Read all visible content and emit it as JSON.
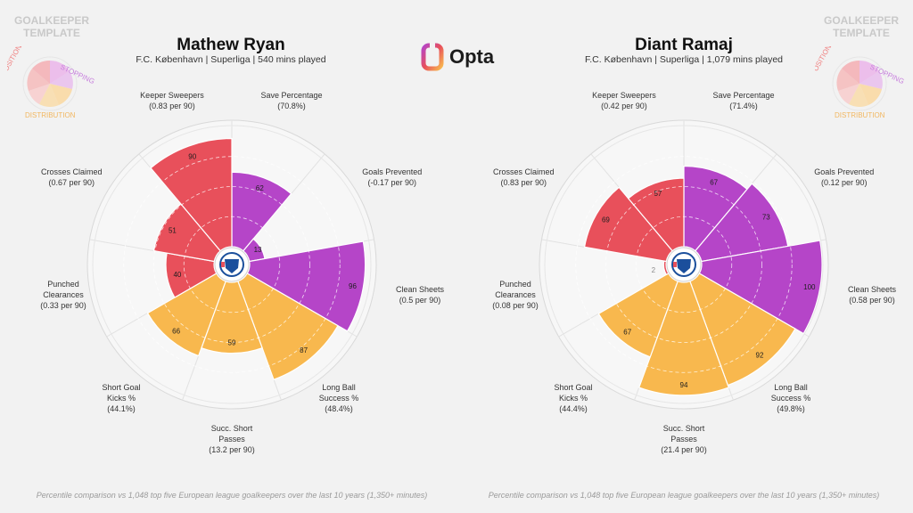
{
  "brand": {
    "name": "Opta"
  },
  "template_label": {
    "line1": "GOALKEEPER",
    "line2": "TEMPLATE"
  },
  "legend_mini": {
    "positioning": "POSITIONING",
    "stopping": "STOPPING",
    "distribution": "DISTRIBUTION"
  },
  "colors": {
    "positioning": "#e8505b",
    "stopping": "#b545c8",
    "distribution": "#f8b84e",
    "background": "#f2f2f2",
    "badge": "#1b4f9c"
  },
  "footnote": "Percentile comparison vs 1,048 top five European league goalkeepers over the last 10 years (1,350+ minutes)",
  "players": [
    {
      "name": "Mathew Ryan",
      "subtitle": "F.C. København | Superliga | 540 mins played",
      "labels": [
        {
          "lines": [
            "Save Percentage",
            "(70.8%)"
          ]
        },
        {
          "lines": [
            "Goals Prevented",
            "(-0.17 per 90)"
          ]
        },
        {
          "lines": [
            "Clean Sheets",
            "(0.5 per 90)"
          ]
        },
        {
          "lines": [
            "Long Ball",
            "Success %",
            "(48.4%)"
          ]
        },
        {
          "lines": [
            "Succ. Short",
            "Passes",
            "(13.2 per 90)"
          ]
        },
        {
          "lines": [
            "Short Goal",
            "Kicks %",
            "(44.1%)"
          ]
        },
        {
          "lines": [
            "Punched",
            "Clearances",
            "(0.33 per 90)"
          ]
        },
        {
          "lines": [
            "Crosses Claimed",
            "(0.67 per 90)"
          ]
        },
        {
          "lines": [
            "Keeper Sweepers",
            "(0.83 per 90)"
          ]
        }
      ]
    },
    {
      "name": "Diant Ramaj",
      "subtitle": "F.C. København | Superliga | 1,079 mins played",
      "labels": [
        {
          "lines": [
            "Save Percentage",
            "(71.4%)"
          ]
        },
        {
          "lines": [
            "Goals Prevented",
            "(0.12 per 90)"
          ]
        },
        {
          "lines": [
            "Clean Sheets",
            "(0.58 per 90)"
          ]
        },
        {
          "lines": [
            "Long Ball",
            "Success %",
            "(49.8%)"
          ]
        },
        {
          "lines": [
            "Succ. Short",
            "Passes",
            "(21.4 per 90)"
          ]
        },
        {
          "lines": [
            "Short Goal",
            "Kicks %",
            "(44.4%)"
          ]
        },
        {
          "lines": [
            "Punched",
            "Clearances",
            "(0.08 per 90)"
          ]
        },
        {
          "lines": [
            "Crosses Claimed",
            "(0.83 per 90)"
          ]
        },
        {
          "lines": [
            "Keeper Sweepers",
            "(0.42 per 90)"
          ]
        }
      ]
    }
  ],
  "chart_data": [
    {
      "type": "polar-bar",
      "title": "Mathew Ryan",
      "categories": [
        "Save Percentage",
        "Goals Prevented",
        "Clean Sheets",
        "Long Ball Success %",
        "Succ. Short Passes",
        "Short Goal Kicks %",
        "Punched Clearances",
        "Crosses Claimed",
        "Keeper Sweepers"
      ],
      "values": [
        62,
        13,
        96,
        87,
        59,
        66,
        40,
        51,
        90
      ],
      "groups": [
        "stopping",
        "stopping",
        "stopping",
        "distribution",
        "distribution",
        "distribution",
        "positioning",
        "positioning",
        "positioning"
      ],
      "rlim": [
        0,
        100
      ],
      "grid": true
    },
    {
      "type": "polar-bar",
      "title": "Diant Ramaj",
      "categories": [
        "Save Percentage",
        "Goals Prevented",
        "Clean Sheets",
        "Long Ball Success %",
        "Succ. Short Passes",
        "Short Goal Kicks %",
        "Punched Clearances",
        "Crosses Claimed",
        "Keeper Sweepers"
      ],
      "values": [
        67,
        73,
        100,
        92,
        94,
        67,
        2,
        69,
        57
      ],
      "groups": [
        "stopping",
        "stopping",
        "stopping",
        "distribution",
        "distribution",
        "distribution",
        "positioning",
        "positioning",
        "positioning"
      ],
      "rlim": [
        0,
        100
      ],
      "grid": true
    }
  ]
}
